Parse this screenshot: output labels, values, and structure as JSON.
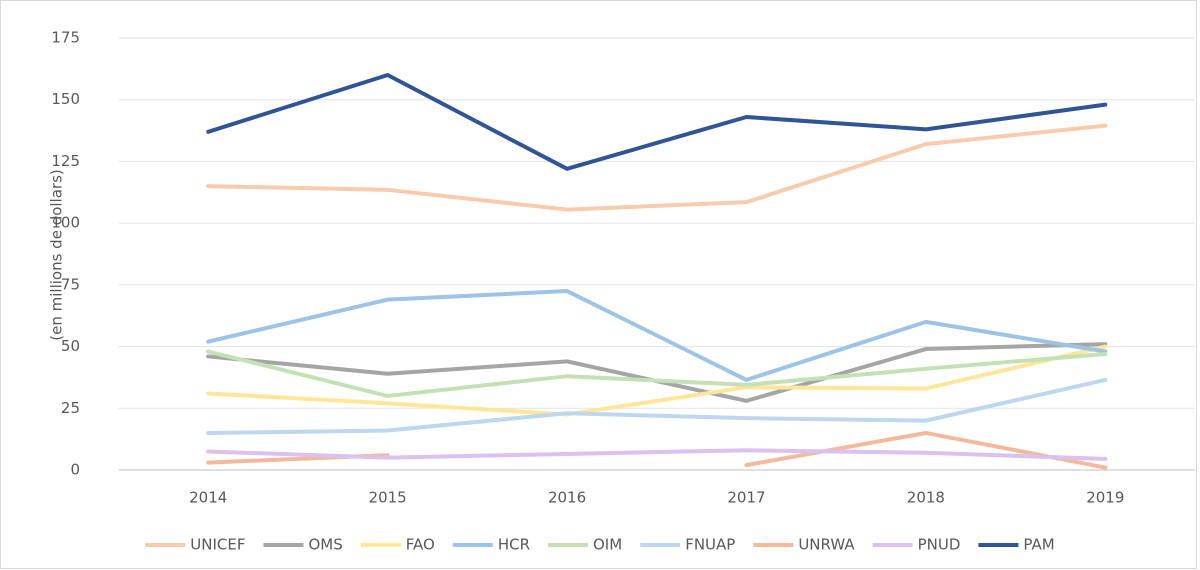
{
  "chart_data": {
    "type": "line",
    "y_label": "(en millions de dollars)",
    "categories": [
      "2014",
      "2015",
      "2016",
      "2017",
      "2018",
      "2019"
    ],
    "ylim": [
      0,
      175
    ],
    "yticks": [
      0,
      25,
      50,
      75,
      100,
      125,
      150,
      175
    ],
    "grid": true,
    "series": [
      {
        "name": "UNICEF",
        "color": "#f8cbad",
        "values": [
          115,
          113.5,
          105.5,
          108.5,
          132,
          139.5
        ]
      },
      {
        "name": "OMS",
        "color": "#a5a5a5",
        "values": [
          46,
          39,
          44,
          28,
          49,
          51
        ]
      },
      {
        "name": "FAO",
        "color": "#ffe699",
        "values": [
          31,
          27,
          22.5,
          33.5,
          33,
          50
        ]
      },
      {
        "name": "HCR",
        "color": "#9dc3e6",
        "values": [
          52,
          69,
          72.5,
          36.5,
          60,
          48
        ]
      },
      {
        "name": "OIM",
        "color": "#c5e0b4",
        "values": [
          48,
          30,
          38,
          34.5,
          41,
          47
        ]
      },
      {
        "name": "FNUAP",
        "color": "#bdd7ee",
        "values": [
          15,
          16,
          23,
          21,
          20,
          36.5
        ]
      },
      {
        "name": "UNRWA",
        "color": "#f4b99a",
        "values": [
          3,
          6,
          null,
          2,
          15,
          1
        ]
      },
      {
        "name": "PNUD",
        "color": "#dcc0ef",
        "values": [
          7.5,
          5,
          6.5,
          8,
          7,
          4.5
        ]
      },
      {
        "name": "PAM",
        "color": "#2f5597",
        "values": [
          137,
          160,
          122,
          143,
          138,
          148
        ]
      }
    ]
  }
}
